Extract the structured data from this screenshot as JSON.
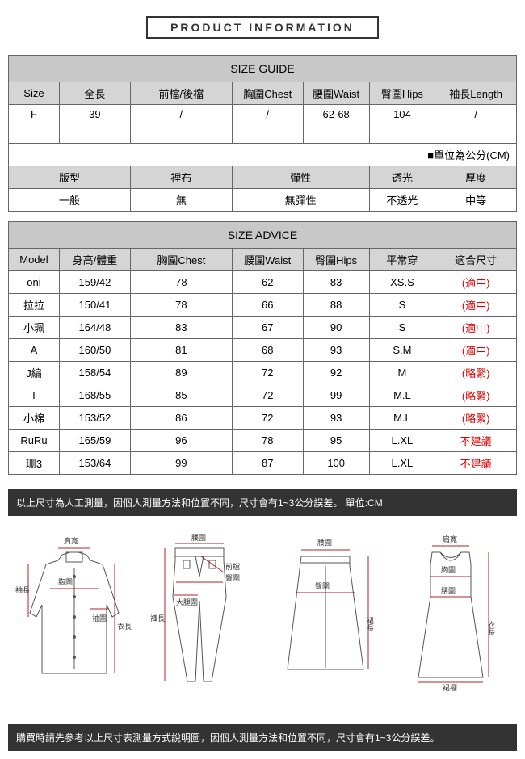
{
  "title": "PRODUCT INFORMATION",
  "size_guide": {
    "header": "SIZE GUIDE",
    "columns": [
      "Size",
      "全長",
      "前檔/後檔",
      "胸圍Chest",
      "腰圍Waist",
      "臀圍Hips",
      "袖長Length"
    ],
    "rows": [
      [
        "F",
        "39",
        "/",
        "/",
        "62-68",
        "104",
        "/"
      ]
    ],
    "unit_note": "■單位為公分(CM)"
  },
  "attributes": {
    "columns": [
      "版型",
      "裡布",
      "彈性",
      "透光",
      "厚度"
    ],
    "values": [
      "一般",
      "無",
      "無彈性",
      "不透光",
      "中等"
    ]
  },
  "size_advice": {
    "header": "SIZE ADVICE",
    "columns": [
      "Model",
      "身高/體重",
      "胸圍Chest",
      "腰圍Waist",
      "臀圍Hips",
      "平常穿",
      "適合尺寸"
    ],
    "rows": [
      {
        "c": [
          "oni",
          "159/42",
          "78",
          "62",
          "83",
          "XS.S",
          "(適中)"
        ],
        "red": true
      },
      {
        "c": [
          "拉拉",
          "150/41",
          "78",
          "66",
          "88",
          "S",
          "(適中)"
        ],
        "red": true
      },
      {
        "c": [
          "小珮",
          "164/48",
          "83",
          "67",
          "90",
          "S",
          "(適中)"
        ],
        "red": true
      },
      {
        "c": [
          "A",
          "160/50",
          "81",
          "68",
          "93",
          "S.M",
          "(適中)"
        ],
        "red": true
      },
      {
        "c": [
          "J編",
          "158/54",
          "89",
          "72",
          "92",
          "M",
          "(略緊)"
        ],
        "red": true
      },
      {
        "c": [
          "T",
          "168/55",
          "85",
          "72",
          "99",
          "M.L",
          "(略緊)"
        ],
        "red": true
      },
      {
        "c": [
          "小棉",
          "153/52",
          "86",
          "72",
          "93",
          "M.L",
          "(略緊)"
        ],
        "red": true
      },
      {
        "c": [
          "RuRu",
          "165/59",
          "96",
          "78",
          "95",
          "L.XL",
          "不建議"
        ],
        "red": true
      },
      {
        "c": [
          "珊3",
          "153/64",
          "99",
          "87",
          "100",
          "L.XL",
          "不建議"
        ],
        "red": true
      }
    ]
  },
  "notes": {
    "top": "以上尺寸為人工測量，因個人測量方法和位置不同，尺寸會有1~3公分誤差。 單位:CM",
    "bottom": "購買時請先參考以上尺寸表測量方式說明圖，因個人測量方法和位置不同，尺寸會有1~3公分誤差。"
  },
  "diagram_labels": {
    "shoulder": "肩寬",
    "chest": "胸圍",
    "sleeve": "袖長",
    "cuff": "袖圍",
    "body_length": "衣長",
    "waist": "腰圍",
    "front_rise": "前檔",
    "hip": "臀圍",
    "thigh": "大腿圍",
    "pant_length": "褲長",
    "skirt_length": "裙長",
    "hem": "裙襬"
  },
  "colors": {
    "header_bg": "#c8c8c8",
    "subheader_bg": "#d5d5d5",
    "border": "#666666",
    "note_bg": "#333333",
    "red": "#dd0000",
    "diagram_line": "#b02020"
  }
}
